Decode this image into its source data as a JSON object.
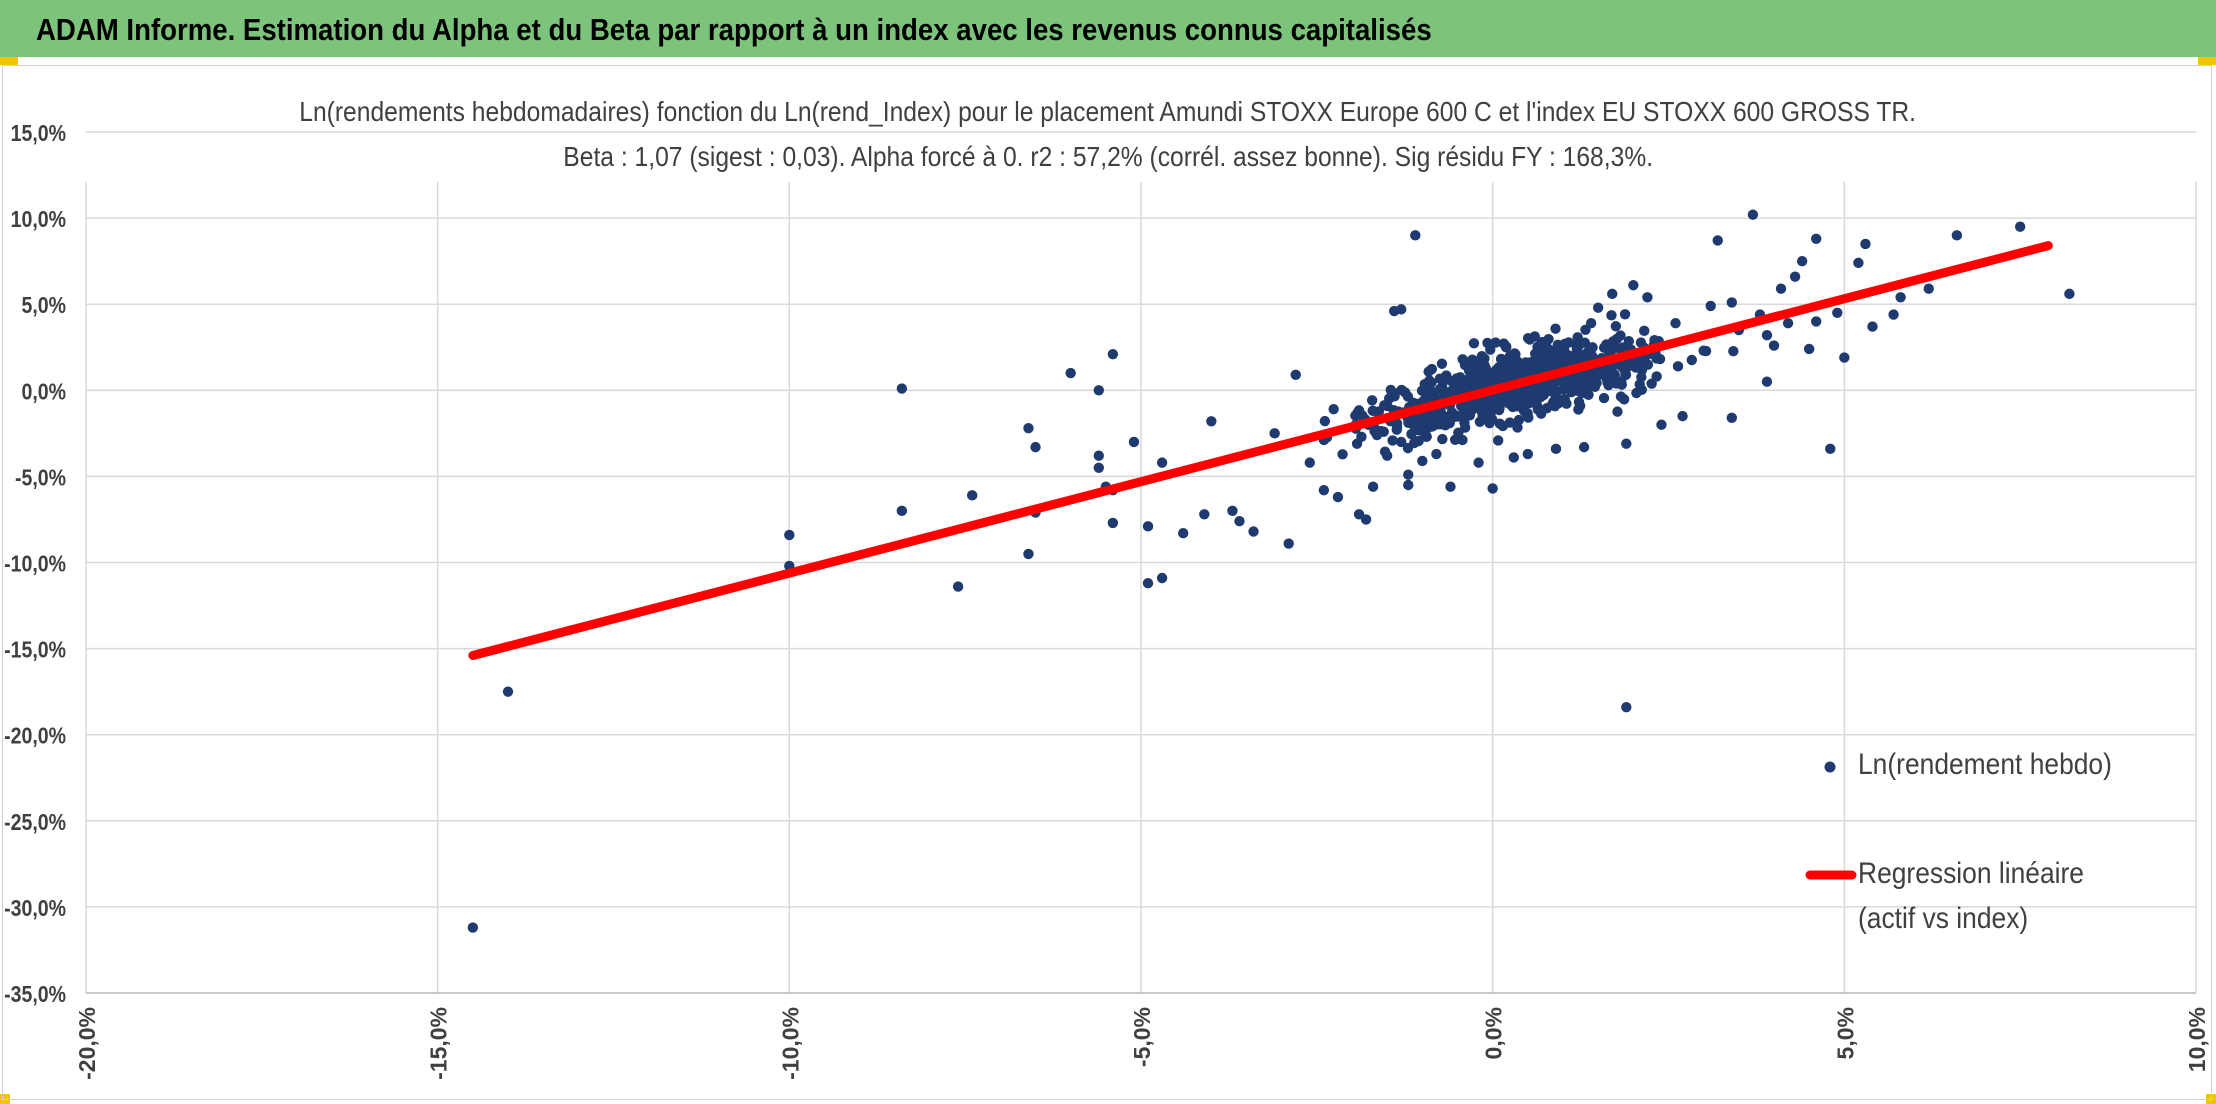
{
  "banner": {
    "title": "ADAM Informe. Estimation du Alpha et du Beta par rapport à un index avec les revenus connus capitalisés",
    "background": "#7cc47c",
    "corner_color": "#f5c400"
  },
  "chart_data": {
    "type": "scatter",
    "title_line1": "Ln(rendements hebdomadaires) fonction du Ln(rend_Index) pour le placement Amundi STOXX Europe 600 C et l'index EU STOXX 600 GROSS TR.",
    "title_line2": "Beta : 1,07 (sigest : 0,03). Alpha forcé à 0. r2 : 57,2% (corrél. assez bonne). Sig résidu FY : 168,3%.",
    "xlabel": "",
    "ylabel": "",
    "xlim": [
      -20,
      10
    ],
    "ylim": [
      -35,
      15
    ],
    "x_ticks": [
      -20,
      -15,
      -10,
      -5,
      0,
      5,
      10
    ],
    "y_ticks": [
      15,
      10,
      5,
      0,
      -5,
      -10,
      -15,
      -20,
      -25,
      -30,
      -35
    ],
    "x_tick_labels": [
      "-20,0%",
      "-15,0%",
      "-10,0%",
      "-5,0%",
      "0,0%",
      "5,0%",
      "10,0%"
    ],
    "y_tick_labels": [
      "15,0%",
      "10,0%",
      "5,0%",
      "0,0%",
      "-5,0%",
      "-10,0%",
      "-15,0%",
      "-20,0%",
      "-25,0%",
      "-30,0%",
      "-35,0%"
    ],
    "grid": true,
    "legend_position": "right",
    "series": [
      {
        "name": "Ln(rendement hebdo)",
        "kind": "scatter",
        "color": "#1f3a6e",
        "points": [
          [
            -14.5,
            -31.2
          ],
          [
            -14.0,
            -17.5
          ],
          [
            -10.0,
            -10.2
          ],
          [
            -10.0,
            -8.4
          ],
          [
            -8.4,
            0.1
          ],
          [
            -8.4,
            -7.0
          ],
          [
            -7.6,
            -11.4
          ],
          [
            -7.4,
            -6.1
          ],
          [
            -6.6,
            -2.2
          ],
          [
            -6.5,
            -3.3
          ],
          [
            -6.5,
            -7.1
          ],
          [
            -6.6,
            -9.5
          ],
          [
            -6.0,
            1.0
          ],
          [
            -5.6,
            0.0
          ],
          [
            -5.4,
            2.1
          ],
          [
            -5.6,
            -3.8
          ],
          [
            -5.6,
            -4.5
          ],
          [
            -5.5,
            -5.6
          ],
          [
            -5.4,
            -5.8
          ],
          [
            -5.4,
            -7.7
          ],
          [
            -5.1,
            -3.0
          ],
          [
            -4.9,
            -7.9
          ],
          [
            -4.9,
            -11.2
          ],
          [
            -4.7,
            -10.9
          ],
          [
            -4.7,
            -4.2
          ],
          [
            -4.4,
            -8.3
          ],
          [
            -4.1,
            -7.2
          ],
          [
            -4.0,
            -1.8
          ],
          [
            -3.7,
            -7.0
          ],
          [
            -3.6,
            -7.6
          ],
          [
            -3.4,
            -8.2
          ],
          [
            -3.1,
            -2.5
          ],
          [
            -2.9,
            -8.9
          ],
          [
            -2.8,
            0.9
          ],
          [
            -2.6,
            -4.2
          ],
          [
            -2.4,
            -5.8
          ],
          [
            -2.2,
            -6.2
          ],
          [
            -1.8,
            -7.5
          ],
          [
            -1.9,
            -7.2
          ],
          [
            -1.7,
            -5.6
          ],
          [
            -1.5,
            -3.8
          ],
          [
            -1.3,
            -3.0
          ],
          [
            -1.4,
            4.6
          ],
          [
            -1.3,
            4.7
          ],
          [
            -1.1,
            9.0
          ],
          [
            -1.0,
            -4.1
          ],
          [
            -1.2,
            -4.9
          ],
          [
            -1.2,
            -5.5
          ],
          [
            -0.8,
            -3.7
          ],
          [
            -0.6,
            -5.6
          ],
          [
            -0.2,
            -4.2
          ],
          [
            0.0,
            -5.7
          ],
          [
            0.3,
            -3.9
          ],
          [
            0.5,
            -3.7
          ],
          [
            0.7,
            2.8
          ],
          [
            0.9,
            -3.4
          ],
          [
            1.0,
            1.9
          ],
          [
            1.3,
            -3.3
          ],
          [
            1.4,
            3.9
          ],
          [
            1.5,
            4.8
          ],
          [
            1.7,
            5.6
          ],
          [
            1.9,
            -3.1
          ],
          [
            1.9,
            -18.4
          ],
          [
            2.0,
            6.1
          ],
          [
            2.2,
            5.4
          ],
          [
            2.4,
            -2.0
          ],
          [
            2.6,
            3.9
          ],
          [
            2.7,
            -1.5
          ],
          [
            3.0,
            2.3
          ],
          [
            3.1,
            4.9
          ],
          [
            3.2,
            8.7
          ],
          [
            3.4,
            5.1
          ],
          [
            3.4,
            -1.6
          ],
          [
            3.7,
            10.2
          ],
          [
            3.8,
            4.4
          ],
          [
            3.9,
            0.5
          ],
          [
            4.0,
            2.6
          ],
          [
            4.2,
            3.9
          ],
          [
            4.3,
            6.6
          ],
          [
            4.4,
            7.5
          ],
          [
            4.6,
            4.0
          ],
          [
            4.9,
            4.5
          ],
          [
            5.0,
            1.9
          ],
          [
            5.3,
            8.5
          ],
          [
            5.2,
            7.4
          ],
          [
            4.8,
            -3.4
          ],
          [
            5.4,
            3.7
          ],
          [
            5.7,
            4.4
          ],
          [
            5.8,
            5.4
          ],
          [
            6.2,
            5.9
          ],
          [
            6.6,
            9.0
          ],
          [
            7.5,
            9.5
          ],
          [
            8.2,
            5.6
          ],
          [
            4.6,
            8.8
          ],
          [
            4.5,
            2.4
          ],
          [
            4.1,
            5.9
          ],
          [
            3.5,
            3.5
          ],
          [
            3.9,
            3.2
          ]
        ],
        "cloud": {
          "x_center": 0.3,
          "x_spread": 1.4,
          "beta": 1.07,
          "residual_spread": 1.4,
          "count": 800
        }
      },
      {
        "name": "Regression linéaire",
        "name_line2": "(actif vs index)",
        "kind": "line",
        "color": "#ff0000",
        "x": [
          -14.5,
          7.9
        ],
        "y": [
          -15.4,
          8.4
        ]
      }
    ]
  }
}
